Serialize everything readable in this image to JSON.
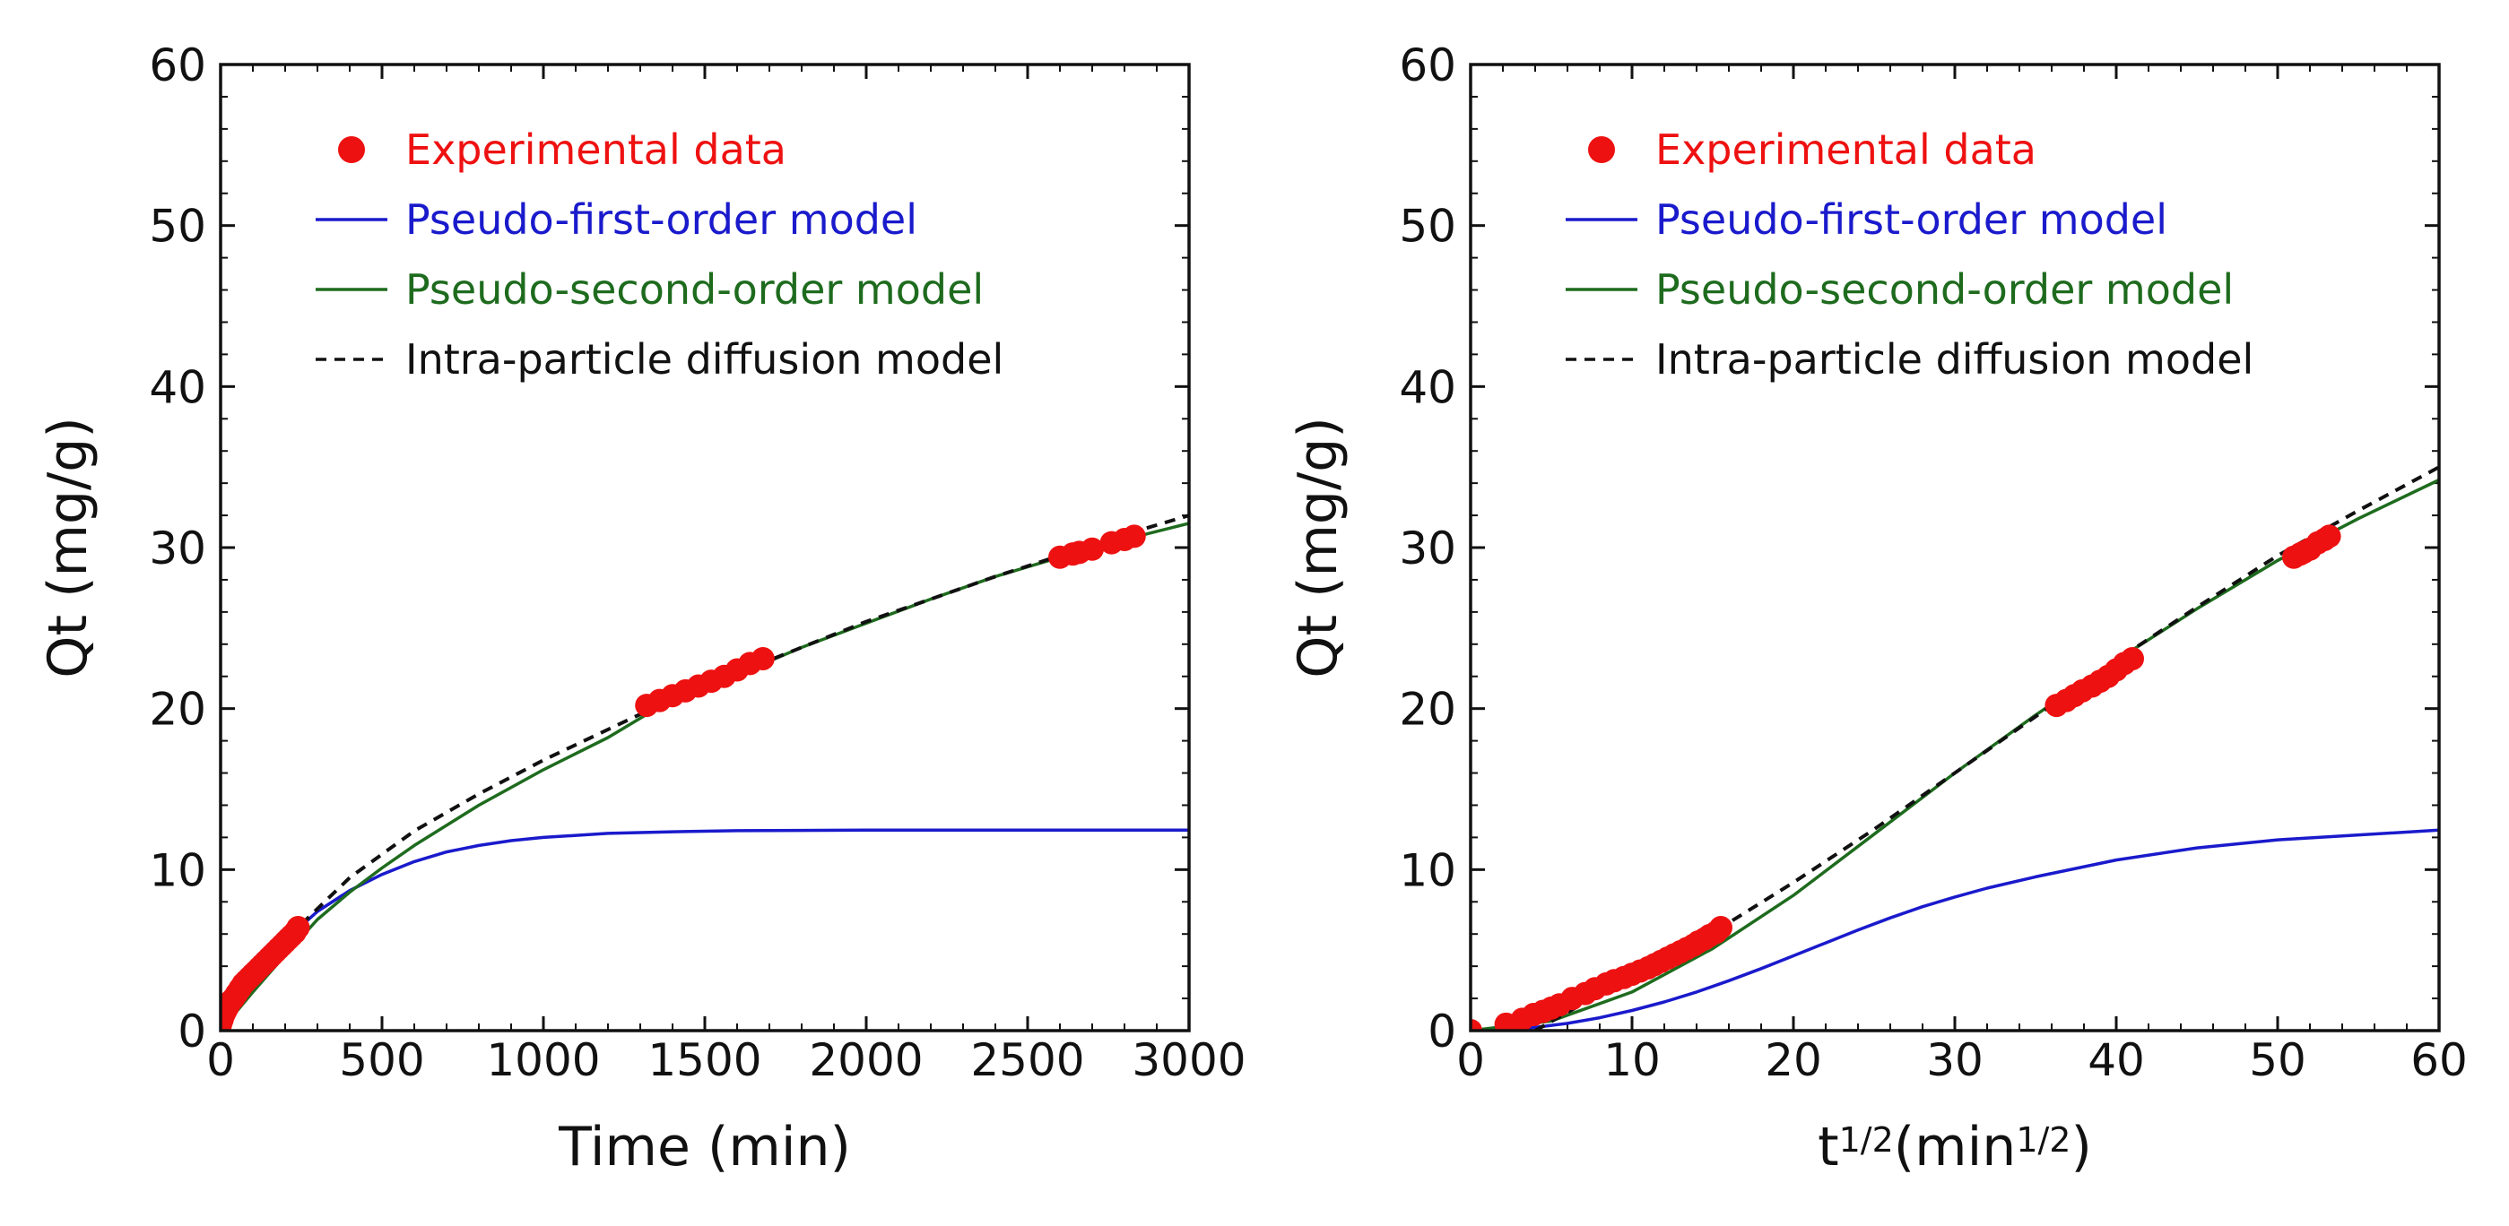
{
  "colors": {
    "experimental": "#ee1111",
    "pseudo_first": "#1a1acc",
    "pseudo_second": "#1e6b1e",
    "intra_particle": "#111111",
    "axis": "#111111"
  },
  "legend": [
    {
      "key": "experimental",
      "label": "Experimental data",
      "kind": "marker"
    },
    {
      "key": "pseudo_first",
      "label": "Pseudo-first-order model",
      "kind": "line"
    },
    {
      "key": "pseudo_second",
      "label": "Pseudo-second-order model",
      "kind": "line"
    },
    {
      "key": "intra_particle",
      "label": "Intra-particle diffusion model",
      "kind": "dash"
    }
  ],
  "chart_data": [
    {
      "type": "line",
      "title": "",
      "xlabel": "Time (min)",
      "xlabel_parts": [
        {
          "text": "Time (min)",
          "sup": false
        }
      ],
      "ylabel": "Qt (mg/g)",
      "xlim": [
        0,
        3000
      ],
      "ylim": [
        0,
        60
      ],
      "xticks": [
        0,
        500,
        1000,
        1500,
        2000,
        2500,
        3000
      ],
      "xtick_labels": [
        "0",
        "500",
        "1000",
        "1500",
        "2000",
        "2500",
        "3000"
      ],
      "yticks": [
        0,
        10,
        20,
        30,
        40,
        50,
        60
      ],
      "ytick_labels": [
        "0",
        "10",
        "20",
        "30",
        "40",
        "50",
        "60"
      ],
      "legend_position": "top-left",
      "series": [
        {
          "name": "Experimental data",
          "key": "experimental",
          "style": "marker",
          "x": [
            0,
            5,
            10,
            15,
            20,
            25,
            30,
            40,
            50,
            60,
            70,
            80,
            90,
            100,
            110,
            120,
            130,
            140,
            150,
            160,
            170,
            180,
            190,
            200,
            210,
            220,
            230,
            240,
            1320,
            1360,
            1400,
            1440,
            1480,
            1520,
            1560,
            1600,
            1640,
            1680,
            2600,
            2640,
            2660,
            2700,
            2760,
            2800,
            2830
          ],
          "y": [
            0.4,
            0.7,
            1.0,
            1.2,
            1.4,
            1.6,
            1.8,
            2.0,
            2.3,
            2.6,
            2.9,
            3.1,
            3.3,
            3.5,
            3.7,
            3.9,
            4.1,
            4.3,
            4.5,
            4.7,
            4.9,
            5.1,
            5.3,
            5.5,
            5.7,
            5.9,
            6.1,
            6.4,
            20.2,
            20.5,
            20.8,
            21.1,
            21.4,
            21.7,
            22.0,
            22.4,
            22.8,
            23.1,
            29.4,
            29.6,
            29.7,
            29.9,
            30.3,
            30.5,
            30.7
          ]
        },
        {
          "name": "Pseudo-first-order model",
          "key": "pseudo_first",
          "style": "line",
          "x": [
            0,
            100,
            200,
            300,
            400,
            500,
            600,
            700,
            800,
            900,
            1000,
            1200,
            1400,
            1600,
            2000,
            2500,
            3000
          ],
          "y": [
            0,
            3.2,
            5.6,
            7.4,
            8.7,
            9.7,
            10.5,
            11.1,
            11.5,
            11.8,
            12.0,
            12.25,
            12.35,
            12.42,
            12.45,
            12.45,
            12.45
          ]
        },
        {
          "name": "Pseudo-second-order model",
          "key": "pseudo_second",
          "style": "line",
          "x": [
            0,
            100,
            200,
            300,
            400,
            500,
            600,
            800,
            1000,
            1200,
            1400,
            1600,
            1800,
            2000,
            2200,
            2400,
            2600,
            2800,
            3000
          ],
          "y": [
            0,
            2.4,
            4.7,
            6.9,
            8.6,
            10.1,
            11.5,
            14.0,
            16.2,
            18.2,
            20.6,
            22.1,
            23.8,
            25.3,
            26.8,
            28.2,
            29.4,
            30.5,
            31.5
          ]
        },
        {
          "name": "Intra-particle diffusion model",
          "key": "intra_particle",
          "style": "dash",
          "x": [
            250,
            400,
            600,
            800,
            1000,
            1200,
            1400,
            1600,
            1800,
            2000,
            2200,
            2400,
            2600,
            2800,
            3000
          ],
          "y": [
            6.6,
            9.5,
            12.4,
            14.7,
            16.8,
            18.7,
            20.6,
            22.2,
            23.8,
            25.4,
            26.8,
            28.2,
            29.5,
            30.8,
            32.0
          ]
        }
      ]
    },
    {
      "type": "line",
      "title": "",
      "xlabel": "t1/2(min1/2)",
      "xlabel_parts": [
        {
          "text": "t",
          "sup": false
        },
        {
          "text": "1/2",
          "sup": true
        },
        {
          "text": "(min",
          "sup": false
        },
        {
          "text": "1/2",
          "sup": true
        },
        {
          "text": ")",
          "sup": false
        }
      ],
      "ylabel": "Qt (mg/g)",
      "xlim": [
        0,
        60
      ],
      "ylim": [
        0,
        60
      ],
      "xticks": [
        0,
        10,
        20,
        30,
        40,
        50,
        60
      ],
      "xtick_labels": [
        "0",
        "10",
        "20",
        "30",
        "40",
        "50",
        "60"
      ],
      "yticks": [
        0,
        10,
        20,
        30,
        40,
        50,
        60
      ],
      "ytick_labels": [
        "0",
        "10",
        "20",
        "30",
        "40",
        "50",
        "60"
      ],
      "legend_position": "top-left",
      "series": [
        {
          "name": "Experimental data",
          "key": "experimental",
          "style": "marker",
          "x": [
            0,
            2.2,
            3.2,
            3.9,
            4.5,
            5.0,
            5.5,
            6.3,
            7.1,
            7.7,
            8.4,
            8.9,
            9.5,
            10.0,
            10.5,
            11.0,
            11.4,
            11.8,
            12.2,
            12.6,
            13.0,
            13.4,
            13.8,
            14.1,
            14.5,
            14.8,
            15.2,
            15.5,
            36.3,
            36.9,
            37.4,
            37.9,
            38.5,
            39.0,
            39.5,
            40.0,
            40.5,
            41.0,
            51.0,
            51.4,
            51.6,
            52.0,
            52.5,
            52.9,
            53.2
          ],
          "y": [
            0,
            0.4,
            0.7,
            1.0,
            1.2,
            1.4,
            1.6,
            2.0,
            2.3,
            2.6,
            2.9,
            3.1,
            3.3,
            3.5,
            3.7,
            3.9,
            4.1,
            4.3,
            4.5,
            4.7,
            4.9,
            5.1,
            5.3,
            5.5,
            5.7,
            5.9,
            6.1,
            6.4,
            20.2,
            20.5,
            20.8,
            21.1,
            21.4,
            21.7,
            22.0,
            22.4,
            22.8,
            23.1,
            29.4,
            29.6,
            29.7,
            29.9,
            30.3,
            30.5,
            30.7
          ]
        },
        {
          "name": "Pseudo-first-order model",
          "key": "pseudo_first",
          "style": "line",
          "x": [
            0,
            2,
            4,
            6,
            8,
            10,
            12,
            14,
            16,
            18,
            20,
            22,
            24,
            26,
            28,
            30,
            32,
            35,
            40,
            45,
            50,
            60
          ],
          "y": [
            0,
            0.05,
            0.2,
            0.45,
            0.8,
            1.25,
            1.78,
            2.4,
            3.1,
            3.85,
            4.65,
            5.45,
            6.25,
            7.0,
            7.7,
            8.3,
            8.85,
            9.55,
            10.6,
            11.35,
            11.85,
            12.45
          ]
        },
        {
          "name": "Pseudo-second-order model",
          "key": "pseudo_second",
          "style": "line",
          "x": [
            0,
            5,
            10,
            15,
            20,
            25,
            30,
            35,
            40,
            45,
            50,
            55,
            60
          ],
          "y": [
            0,
            0.6,
            2.4,
            5.1,
            8.4,
            12.2,
            16.0,
            19.6,
            23.0,
            26.2,
            29.2,
            31.8,
            34.2
          ]
        },
        {
          "name": "Intra-particle diffusion model",
          "key": "intra_particle",
          "style": "dash",
          "x": [
            4,
            10,
            16,
            20,
            25,
            30,
            35,
            40,
            45,
            50,
            55,
            60
          ],
          "y": [
            0,
            3.4,
            6.7,
            9.2,
            12.5,
            16.0,
            19.5,
            23.0,
            26.3,
            29.5,
            32.3,
            35.0
          ]
        }
      ]
    }
  ]
}
